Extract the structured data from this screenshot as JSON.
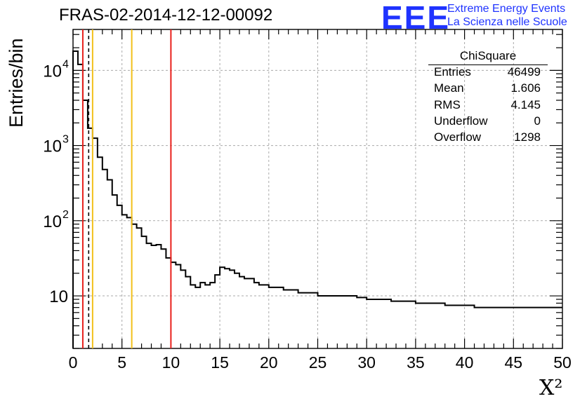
{
  "header": {
    "title": "FRAS-02-2014-12-12-00092",
    "logo_text": "EEE",
    "logo_line1": "Extreme Energy Events",
    "logo_line2": "La Scienza nelle Scuole",
    "logo_color": "#1f33ff"
  },
  "stats_box": {
    "title": "ChiSquare",
    "rows": [
      {
        "label": "Entries",
        "value": "46499"
      },
      {
        "label": "Mean",
        "value": "1.606"
      },
      {
        "label": "RMS",
        "value": "4.145"
      },
      {
        "label": "Underflow",
        "value": "0"
      },
      {
        "label": "Overflow",
        "value": "1298"
      }
    ]
  },
  "chart_data": {
    "type": "histogram",
    "title": "FRAS-02-2014-12-12-00092",
    "xlabel": "X²",
    "ylabel": "Entries/bin",
    "xlim": [
      0,
      50
    ],
    "ylim": [
      2,
      35000
    ],
    "yscale": "log",
    "bin_width": 0.5,
    "grid": true,
    "x_tick_labels": [
      "0",
      "5",
      "10",
      "15",
      "20",
      "25",
      "30",
      "35",
      "40",
      "45",
      "50"
    ],
    "y_tick_labels": [
      {
        "value": 10,
        "base": "10",
        "exp": ""
      },
      {
        "value": 100,
        "base": "10",
        "exp": "2"
      },
      {
        "value": 1000,
        "base": "10",
        "exp": "3"
      },
      {
        "value": 10000,
        "base": "10",
        "exp": "4"
      }
    ],
    "values": [
      18000,
      12000,
      4000,
      1700,
      1250,
      700,
      480,
      350,
      220,
      160,
      120,
      110,
      90,
      80,
      62,
      50,
      47,
      48,
      42,
      32,
      28,
      26,
      22,
      18,
      14,
      13,
      15,
      14,
      15,
      19,
      24,
      23,
      22,
      20,
      18,
      17,
      17,
      15,
      14,
      14,
      13,
      13,
      13,
      12,
      12,
      12,
      11,
      11,
      11,
      11,
      10,
      10,
      10,
      10,
      10,
      10,
      10,
      10,
      9.5,
      9.5,
      9,
      9,
      9,
      9,
      9,
      8.5,
      8.5,
      8.5,
      8.5,
      8.5,
      8,
      8,
      8,
      8,
      8,
      8,
      7.5,
      7.5,
      7.5,
      7.5,
      7.5,
      7.5,
      7,
      7,
      7,
      7,
      7,
      7,
      7,
      7,
      7,
      7,
      7,
      7,
      7,
      7,
      7,
      7,
      7,
      7
    ],
    "vertical_lines": [
      {
        "x": 1.0,
        "color": "#e8201c",
        "style": "solid"
      },
      {
        "x": 1.6,
        "color": "#000000",
        "style": "dashed"
      },
      {
        "x": 2.0,
        "color": "#f2c01a",
        "style": "solid"
      },
      {
        "x": 6.0,
        "color": "#f2c01a",
        "style": "solid"
      },
      {
        "x": 10.0,
        "color": "#e8201c",
        "style": "solid"
      }
    ]
  }
}
